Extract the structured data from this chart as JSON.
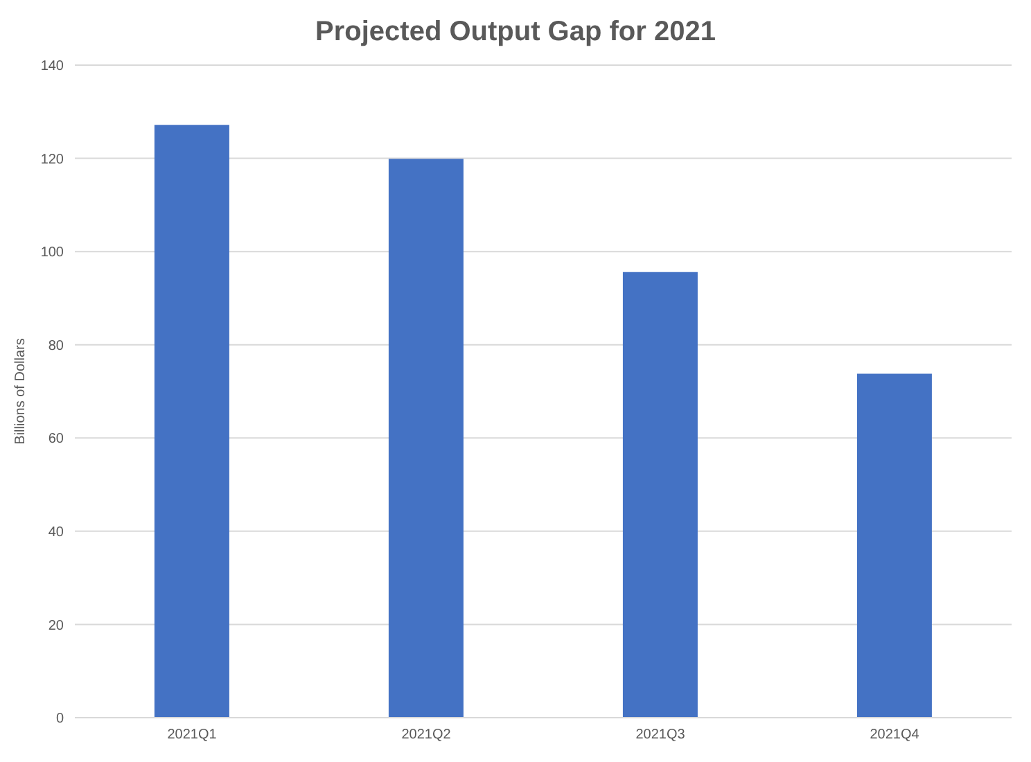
{
  "chart_data": {
    "type": "bar",
    "title": "Projected Output Gap for 2021",
    "ylabel": "Billions of Dollars",
    "categories": [
      "2021Q1",
      "2021Q2",
      "2021Q3",
      "2021Q4"
    ],
    "values": [
      127.2,
      119.9,
      95.6,
      73.8
    ],
    "color": "#4472c4",
    "ylim": [
      0,
      140
    ],
    "yticks": [
      0,
      20,
      40,
      60,
      80,
      100,
      120,
      140
    ],
    "grid": "y"
  }
}
